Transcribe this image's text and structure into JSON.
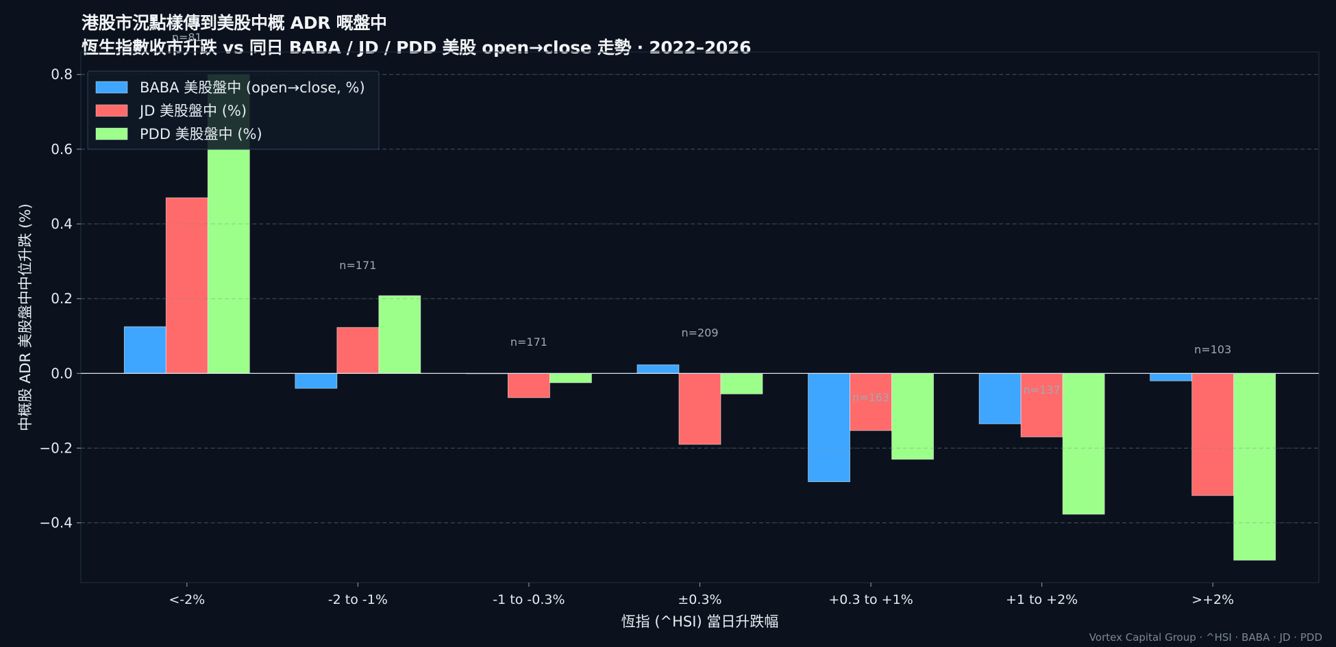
{
  "title_line1": "港股市況點樣傳到美股中概 ADR 嘅盤中",
  "title_line2": "恆生指數收市升跌 vs 同日 BABA / JD / PDD 美股 open→close 走勢 · 2022–2026",
  "footer": "Vortex Capital Group · ^HSI · BABA · JD · PDD",
  "colors": {
    "background": "#0b121d",
    "baba": "#3fa6ff",
    "jd": "#ff6b6b",
    "pdd": "#9cff8a",
    "axis": "#5a6a80",
    "text": "#e6edf3",
    "annotation": "#a0a8b4"
  },
  "chart_data": {
    "type": "bar",
    "xlabel": "恆指 (^HSI) 當日升跌幅",
    "ylabel": "中概股 ADR 美股盤中中位升跌 (%)",
    "ylim": [
      -0.56,
      0.86
    ],
    "yticks": [
      -0.4,
      -0.2,
      0.0,
      0.2,
      0.4,
      0.6,
      0.8
    ],
    "ytick_labels": [
      "−0.4",
      "−0.2",
      "0.0",
      "0.2",
      "0.4",
      "0.6",
      "0.8"
    ],
    "grid": "horizontal-dashed",
    "legend_position": "top-left",
    "categories": [
      "<-2%",
      "-2 to -1%",
      "-1 to -0.3%",
      "±0.3%",
      "+0.3 to +1%",
      "+1 to +2%",
      ">+2%"
    ],
    "series": [
      {
        "name": "BABA 美股盤中 (open→close, %)",
        "values": [
          0.125,
          -0.04,
          0.0,
          0.023,
          -0.29,
          -0.135,
          -0.02
        ]
      },
      {
        "name": "JD 美股盤中 (%)",
        "values": [
          0.47,
          0.123,
          -0.065,
          -0.19,
          -0.153,
          -0.17,
          -0.327
        ]
      },
      {
        "name": "PDD 美股盤中 (%)",
        "values": [
          0.8,
          0.208,
          -0.025,
          -0.055,
          -0.23,
          -0.377,
          -0.5
        ]
      }
    ],
    "annotations": [
      {
        "category": "<-2%",
        "text": "n=81",
        "y": 0.9
      },
      {
        "category": "-2 to -1%",
        "text": "n=171",
        "y": 0.29
      },
      {
        "category": "-1 to -0.3%",
        "text": "n=171",
        "y": 0.085
      },
      {
        "category": "±0.3%",
        "text": "n=209",
        "y": 0.11
      },
      {
        "category": "+0.3 to +1%",
        "text": "n=163",
        "y": -0.063
      },
      {
        "category": "+1 to +2%",
        "text": "n=137",
        "y": -0.043
      },
      {
        "category": ">+2%",
        "text": "n=103",
        "y": 0.065
      }
    ]
  }
}
